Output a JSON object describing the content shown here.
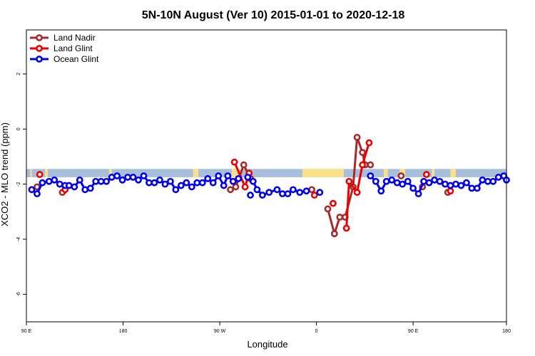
{
  "chart_data": {
    "type": "line",
    "title": "5N-10N August (Ver 10)   2015-01-01 to 2020-12-18",
    "xlabel": "Longitude",
    "ylabel": "XCO2 - MLO trend (ppm)",
    "xlim": [
      0,
      360
    ],
    "ylim": [
      -7,
      3.6
    ],
    "x_ticks": [
      {
        "value": 0,
        "label": "90 E"
      },
      {
        "value": 72.5,
        "label": "180"
      },
      {
        "value": 145,
        "label": "90 W"
      },
      {
        "value": 217.5,
        "label": "0"
      },
      {
        "value": 290,
        "label": "90 E"
      },
      {
        "value": 360,
        "label": "180"
      }
    ],
    "y_ticks": [
      {
        "value": 2,
        "label": "2"
      },
      {
        "value": 0,
        "label": "0"
      },
      {
        "value": -2,
        "label": "-2"
      },
      {
        "value": -4,
        "label": "-4"
      },
      {
        "value": -6,
        "label": "-6"
      }
    ],
    "land_band": {
      "y_top": -1.45,
      "y_bottom": -1.75,
      "ocean_color": "#a8bfdc",
      "land_color": "#fde08a"
    },
    "land_segments": [
      [
        3,
        4
      ],
      [
        14,
        16
      ],
      [
        62,
        64
      ],
      [
        125,
        129
      ],
      [
        154,
        161
      ],
      [
        207,
        238
      ],
      [
        268,
        271
      ],
      [
        280,
        284
      ],
      [
        304,
        306
      ],
      [
        318,
        322
      ]
    ],
    "series": [
      {
        "name": "Land Nadir",
        "color": "#a52a2a",
        "segments": [
          [
            [
              8,
              -2.1
            ]
          ],
          [
            [
              27,
              -2.3
            ]
          ],
          [
            [
              153,
              -2.2
            ],
            [
              157,
              -2.1
            ],
            [
              163,
              -1.3
            ],
            [
              168,
              -1.8
            ]
          ],
          [
            [
              214,
              -2.2
            ]
          ],
          [
            [
              226,
              -2.9
            ],
            [
              231,
              -3.8
            ],
            [
              235,
              -3.2
            ],
            [
              239,
              -3.2
            ],
            [
              245,
              -2.1
            ],
            [
              248,
              -0.3
            ],
            [
              252,
              -0.85
            ],
            [
              254,
              -1.3
            ],
            [
              258,
              -1.3
            ]
          ],
          [
            [
              281,
              -1.7
            ]
          ],
          [
            [
              297,
              -2.1
            ]
          ],
          [
            [
              316,
              -2.3
            ]
          ]
        ]
      },
      {
        "name": "Land Glint",
        "color": "#ee0000",
        "segments": [
          [
            [
              10,
              -1.65
            ]
          ],
          [
            [
              29,
              -2.2
            ]
          ],
          [
            [
              156,
              -1.2
            ],
            [
              164,
              -2.1
            ],
            [
              167,
              -1.6
            ]
          ],
          [
            [
              216,
              -2.4
            ]
          ],
          [
            [
              230,
              -2.7
            ]
          ],
          [
            [
              240,
              -3.6
            ],
            [
              242,
              -1.9
            ],
            [
              248,
              -2.3
            ],
            [
              252,
              -1.3
            ],
            [
              257,
              -0.5
            ]
          ],
          [
            [
              300,
              -1.65
            ]
          ],
          [
            [
              318,
              -2.25
            ]
          ]
        ]
      },
      {
        "name": "Ocean Glint",
        "color": "#0000ee",
        "segments": [
          [
            [
              4,
              -2.2
            ],
            [
              8,
              -2.35
            ],
            [
              12,
              -1.95
            ],
            [
              17,
              -1.9
            ],
            [
              21,
              -1.85
            ],
            [
              25,
              -2.0
            ],
            [
              29,
              -2.05
            ],
            [
              32,
              -2.05
            ],
            [
              36,
              -2.1
            ],
            [
              40,
              -1.85
            ],
            [
              44,
              -2.2
            ],
            [
              48,
              -2.15
            ],
            [
              52,
              -1.9
            ],
            [
              56,
              -1.9
            ],
            [
              60,
              -1.9
            ],
            [
              64,
              -1.75
            ],
            [
              68,
              -1.7
            ],
            [
              72,
              -1.85
            ],
            [
              76,
              -1.75
            ],
            [
              80,
              -1.75
            ],
            [
              84,
              -1.85
            ],
            [
              88,
              -1.7
            ],
            [
              92,
              -1.95
            ],
            [
              96,
              -1.95
            ],
            [
              100,
              -1.85
            ],
            [
              104,
              -2.0
            ],
            [
              108,
              -1.9
            ],
            [
              112,
              -2.2
            ],
            [
              116,
              -2.05
            ],
            [
              120,
              -1.95
            ],
            [
              124,
              -2.1
            ],
            [
              128,
              -1.95
            ],
            [
              132,
              -1.95
            ],
            [
              136,
              -1.8
            ],
            [
              140,
              -1.95
            ],
            [
              144,
              -1.7
            ],
            [
              148,
              -2.05
            ],
            [
              151,
              -1.7
            ],
            [
              155,
              -1.9
            ],
            [
              159,
              -1.8
            ]
          ],
          [
            [
              166,
              -1.75
            ],
            [
              170,
              -1.9
            ],
            [
              173,
              -2.2
            ],
            [
              177,
              -2.4
            ],
            [
              182,
              -2.3
            ],
            [
              188,
              -2.2
            ],
            [
              192,
              -2.35
            ],
            [
              196,
              -2.35
            ],
            [
              200,
              -2.2
            ],
            [
              205,
              -2.3
            ],
            [
              210,
              -2.25
            ]
          ],
          [
            [
              168,
              -2.4
            ]
          ],
          [
            [
              220,
              -2.3
            ]
          ],
          [
            [
              258,
              -1.7
            ],
            [
              262,
              -1.9
            ],
            [
              266,
              -2.25
            ],
            [
              270,
              -1.9
            ],
            [
              274,
              -1.85
            ],
            [
              278,
              -1.95
            ],
            [
              282,
              -2.0
            ],
            [
              286,
              -1.9
            ],
            [
              290,
              -2.15
            ],
            [
              294,
              -2.35
            ],
            [
              298,
              -1.9
            ],
            [
              302,
              -1.95
            ],
            [
              306,
              -1.85
            ],
            [
              310,
              -1.9
            ],
            [
              314,
              -2.0
            ],
            [
              318,
              -2.05
            ],
            [
              322,
              -2.0
            ],
            [
              326,
              -2.05
            ],
            [
              330,
              -1.95
            ],
            [
              334,
              -2.15
            ],
            [
              338,
              -2.15
            ],
            [
              342,
              -1.85
            ],
            [
              346,
              -1.9
            ],
            [
              350,
              -1.9
            ],
            [
              354,
              -1.75
            ],
            [
              358,
              -1.7
            ],
            [
              360,
              -1.85
            ]
          ]
        ]
      }
    ],
    "legend": {
      "position": "top-left",
      "entries": [
        "Land Nadir",
        "Land Glint",
        "Ocean Glint"
      ]
    }
  }
}
